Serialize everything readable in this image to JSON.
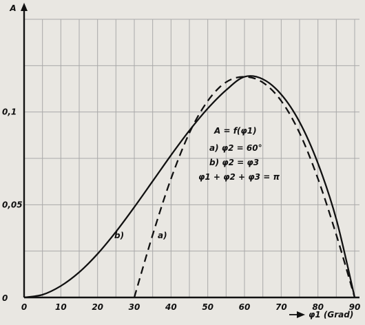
{
  "chart_data": {
    "type": "line",
    "ylabel": "A",
    "xlabel": "φ1 (Grad)",
    "xlim": [
      0,
      90
    ],
    "ylim": [
      0,
      0.15
    ],
    "x_ticks": [
      "0",
      "10",
      "20",
      "30",
      "40",
      "50",
      "60",
      "70",
      "80",
      "90"
    ],
    "y_ticks": [
      {
        "value": 0,
        "label": "0"
      },
      {
        "value": 0.05,
        "label": "0,05"
      },
      {
        "value": 0.1,
        "label": "0,1"
      }
    ],
    "grid": true,
    "legend": {
      "title": "A = f(φ1)",
      "lines": [
        "a) φ2 = 60°",
        "b) φ2 = φ3",
        "φ1 + φ2 + φ3 = π"
      ]
    },
    "series": [
      {
        "name": "b)",
        "style": "solid",
        "x": [
          0,
          5,
          10,
          15,
          20,
          25,
          30,
          35,
          40,
          45,
          50,
          55,
          60,
          65,
          70,
          75,
          80,
          85,
          90
        ],
        "y": [
          0,
          0.0015,
          0.0062,
          0.0136,
          0.0235,
          0.0354,
          0.0487,
          0.0627,
          0.0767,
          0.09,
          0.1019,
          0.1118,
          0.119,
          0.1177,
          0.1095,
          0.0946,
          0.0723,
          0.0422,
          0
        ]
      },
      {
        "name": "a)",
        "style": "dashed",
        "x": [
          30,
          35,
          40,
          45,
          50,
          55,
          60,
          65,
          70,
          75,
          80,
          85,
          90
        ],
        "y": [
          0,
          0.0338,
          0.064,
          0.0887,
          0.106,
          0.1161,
          0.119,
          0.1159,
          0.106,
          0.0887,
          0.064,
          0.0338,
          0
        ]
      }
    ]
  }
}
